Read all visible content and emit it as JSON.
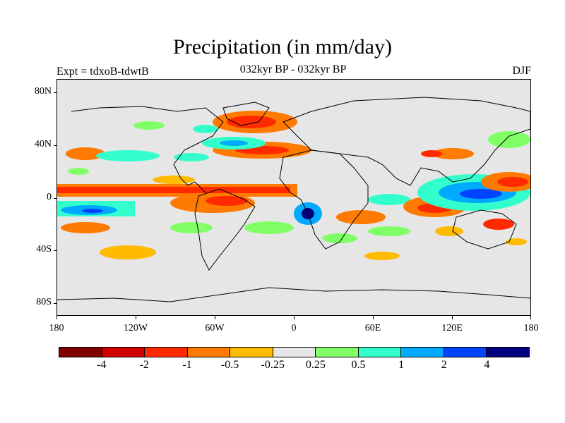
{
  "title": "Precipitation (in mm/day)",
  "subtitle": "032kyr BP - 032kyr BP",
  "expt_label": "Expt = tdxoB-tdwtB",
  "season": "DJF",
  "lat_labels": [
    "80N",
    "40N",
    "0",
    "40S",
    "80S"
  ],
  "lon_labels": [
    "180",
    "120W",
    "60W",
    "0",
    "60E",
    "120E",
    "180"
  ],
  "colorbar": {
    "colors": [
      "#800000",
      "#d00000",
      "#ff2a00",
      "#ff7a00",
      "#ffbb00",
      "#e6e6e6",
      "#80ff66",
      "#33ffcc",
      "#00aaff",
      "#0044ff",
      "#000080"
    ],
    "labels": [
      "-4",
      "-2",
      "-1",
      "-0.5",
      "-0.25",
      "0.25",
      "0.5",
      "1",
      "2",
      "4"
    ]
  },
  "colors": {
    "background": "#e6e6e6",
    "coast": "#000000"
  }
}
